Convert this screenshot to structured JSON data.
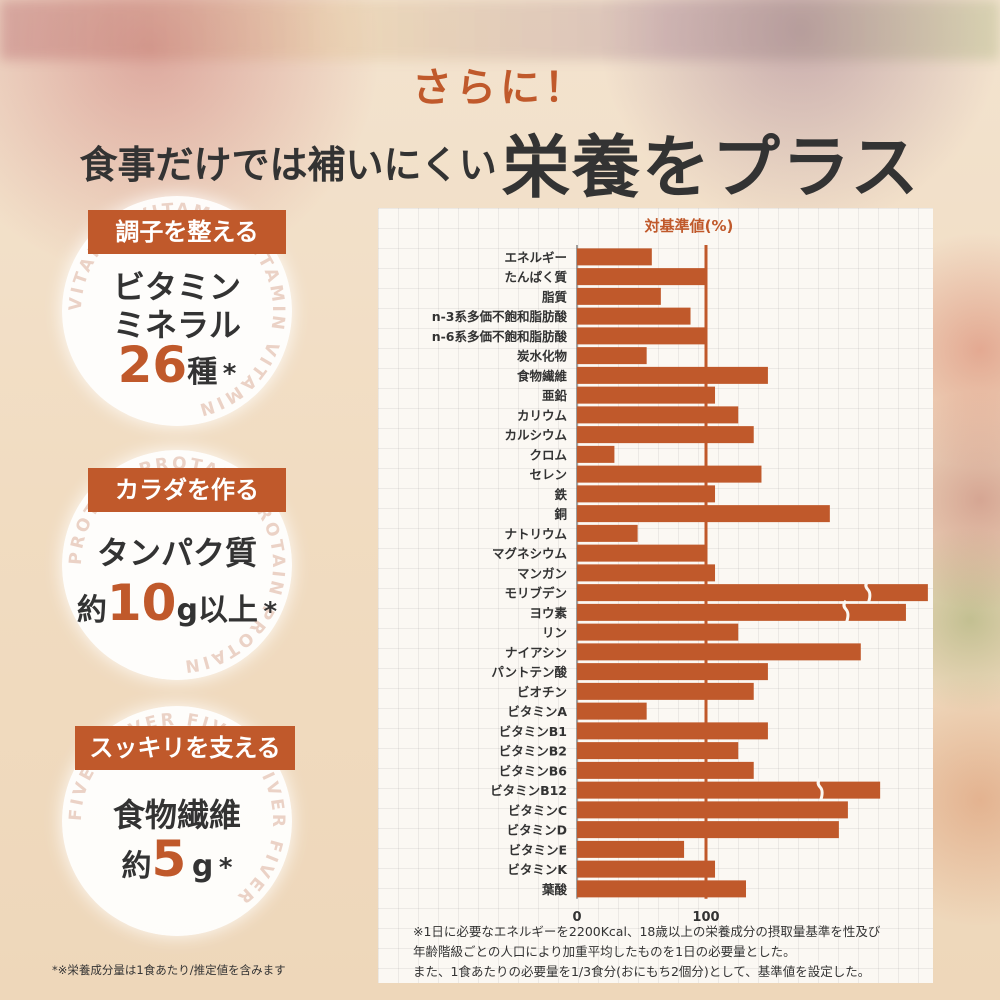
{
  "header": {
    "eyebrow": "さらに！",
    "headline_small": "食事だけでは補いにくい",
    "headline_big": "栄養をプラス"
  },
  "badges": [
    {
      "tag": "調子を整える",
      "line1": "ビタミン",
      "line2": "ミネラル",
      "number": "26",
      "unit": "種",
      "asterisk": "*",
      "ring_text": "VITAMIN VITAMIN VITAMIN VITAMIN"
    },
    {
      "tag": "カラダを作る",
      "line1": "タンパク質",
      "prefix": "約",
      "number": "10",
      "unit": "g以上",
      "asterisk": "*",
      "ring_text": "PROTAIN PROTAIN PROTAIN PROTAIN"
    },
    {
      "tag": "スッキリを支える",
      "line1": "食物繊維",
      "prefix": "約",
      "number": "5",
      "unit": "g",
      "asterisk": "*",
      "ring_text": "FIVER FIVER FIVER FIVER FIVER"
    }
  ],
  "chart_data": {
    "type": "bar",
    "orientation": "horizontal",
    "title": "対基準値(%)",
    "categories": [
      "エネルギー",
      "たんぱく質",
      "脂質",
      "n-3系多価不飽和脂肪酸",
      "n-6系多価不飽和脂肪酸",
      "炭水化物",
      "食物繊維",
      "亜鉛",
      "カリウム",
      "カルシウム",
      "クロム",
      "セレン",
      "鉄",
      "銅",
      "ナトリウム",
      "マグネシウム",
      "マンガン",
      "モリブデン",
      "ヨウ素",
      "リン",
      "ナイアシン",
      "パントテン酸",
      "ビオチン",
      "ビタミンA",
      "ビタミンB1",
      "ビタミンB2",
      "ビタミンB6",
      "ビタミンB12",
      "ビタミンC",
      "ビタミンD",
      "ビタミンE",
      "ビタミンK",
      "葉酸"
    ],
    "values": [
      58,
      101,
      65,
      88,
      101,
      54,
      148,
      107,
      125,
      137,
      29,
      143,
      107,
      196,
      47,
      101,
      107,
      272,
      255,
      125,
      220,
      148,
      137,
      54,
      148,
      125,
      137,
      235,
      210,
      203,
      83,
      107,
      131
    ],
    "broken_axis": [
      "モリブデン",
      "ヨウ素",
      "ビタミンB12"
    ],
    "reference_line": 100,
    "x_ticks": [
      0,
      100
    ],
    "xlim": [
      0,
      272
    ],
    "grid": true,
    "bar_color": "#c0592b"
  },
  "notes": {
    "line1": "※1日に必要なエネルギーを2200Kcal、18歳以上の栄養成分の摂取量基準を性及び",
    "line2": "年齢階級ごとの人口により加重平均したものを1日の必要量とした。",
    "line3": "また、1食あたりの必要量を1/3食分(おにもち2個分)として、基準値を設定した。"
  },
  "footnote": "*※栄養成分量は1食あたり/推定値を含みます"
}
